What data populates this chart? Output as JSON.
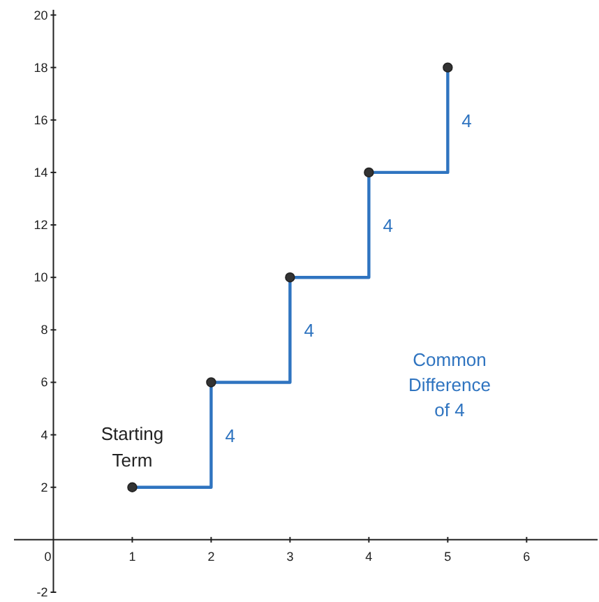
{
  "chart_data": {
    "type": "step",
    "x": [
      1,
      2,
      3,
      4,
      5
    ],
    "series": [
      {
        "color": "#2f74c0",
        "values": [
          2,
          6,
          10,
          14,
          18
        ]
      }
    ],
    "marker": "circle",
    "xlim": [
      -0.5,
      6.9
    ],
    "ylim": [
      -2,
      20.2
    ],
    "xticks": [
      0,
      1,
      2,
      3,
      4,
      5,
      6
    ],
    "yticks": [
      -2,
      2,
      4,
      6,
      8,
      10,
      12,
      14,
      16,
      18,
      20
    ],
    "grid": false,
    "annotations": [
      {
        "text": "Starting Term",
        "x": 1,
        "y": 2
      },
      {
        "text": "4",
        "x": 2,
        "y": 4
      },
      {
        "text": "4",
        "x": 3,
        "y": 8
      },
      {
        "text": "4",
        "x": 4,
        "y": 12
      },
      {
        "text": "4",
        "x": 5,
        "y": 16
      },
      "Common Difference of 4"
    ]
  }
}
